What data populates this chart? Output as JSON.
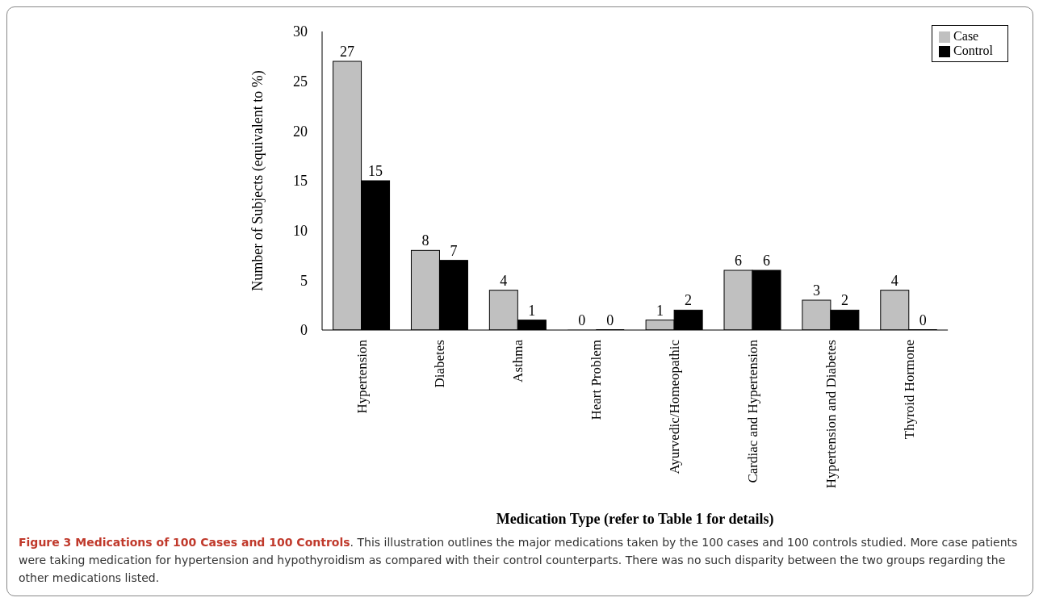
{
  "chart_data": {
    "type": "bar",
    "xlabel": "Medication Type (refer to Table 1 for details)",
    "ylabel": "Number of Subjects (equivalent to %)",
    "categories": [
      "Hypertension",
      "Diabetes",
      "Asthma",
      "Heart Problem",
      "Ayurvedic/Homeopathic",
      "Cardiac and Hypertension",
      "Hypertension and Diabetes",
      "Thyroid Hormone"
    ],
    "series": [
      {
        "name": "Case",
        "color": "#c0c0c0",
        "values": [
          27,
          8,
          4,
          0,
          1,
          6,
          3,
          4
        ]
      },
      {
        "name": "Control",
        "color": "#000000",
        "values": [
          15,
          7,
          1,
          0,
          2,
          6,
          2,
          0
        ]
      }
    ],
    "ylim": [
      0,
      30
    ],
    "yticks": [
      0,
      5,
      10,
      15,
      20,
      25,
      30
    ],
    "grid": false,
    "legend": "top right",
    "data_labels": true,
    "annotations": [
      "Figure 3 Medications of 100 Cases and 100 Controls",
      ". This illustration outlines the major medications taken by the 100 cases and 100 controls studied. More case patients were taking medication for hypertension and hypothyroidism as compared with their control counterparts. There was no such disparity between the two groups regarding the other medications listed."
    ]
  }
}
